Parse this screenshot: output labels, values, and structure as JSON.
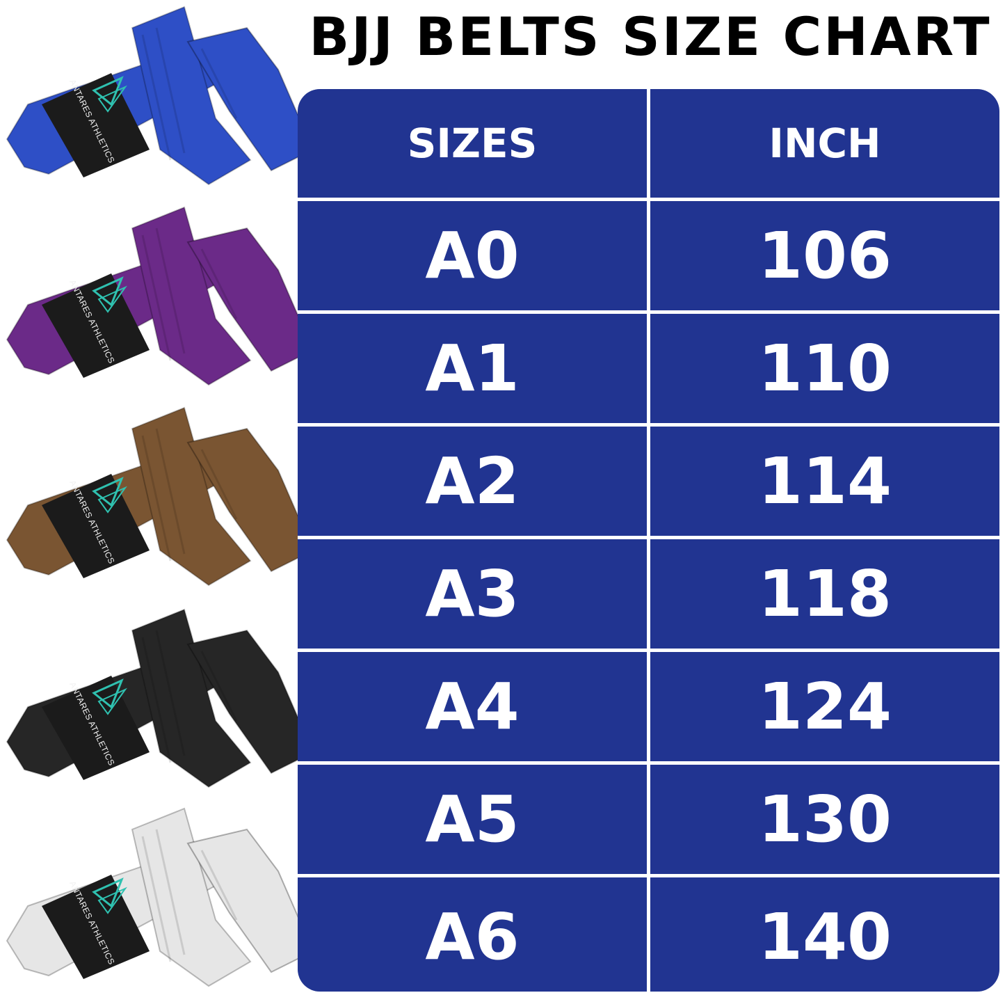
{
  "title": "BJJ BELTS SIZE CHART",
  "brand_logo_text": "ANTARES ATHLETICS",
  "colors": {
    "table_bg": "#213491",
    "text": "#ffffff",
    "title": "#000000"
  },
  "belts": [
    {
      "color_name": "blue",
      "color": "#2e4fc6"
    },
    {
      "color_name": "purple",
      "color": "#6b2a88"
    },
    {
      "color_name": "brown",
      "color": "#7a5532"
    },
    {
      "color_name": "black",
      "color": "#262626"
    },
    {
      "color_name": "white",
      "color": "#e6e6e6"
    }
  ],
  "chart_data": {
    "type": "table",
    "title": "BJJ BELTS SIZE CHART",
    "columns": [
      "SIZES",
      "INCH"
    ],
    "rows": [
      [
        "A0",
        "106"
      ],
      [
        "A1",
        "110"
      ],
      [
        "A2",
        "114"
      ],
      [
        "A3",
        "118"
      ],
      [
        "A4",
        "124"
      ],
      [
        "A5",
        "130"
      ],
      [
        "A6",
        "140"
      ]
    ]
  }
}
